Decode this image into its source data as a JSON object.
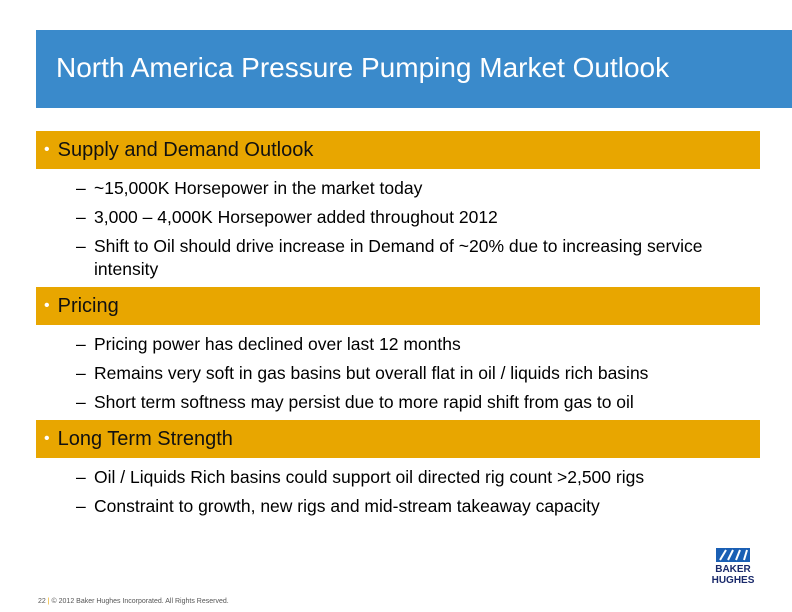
{
  "header": {
    "title": "North America Pressure Pumping Market Outlook"
  },
  "sections": [
    {
      "heading": "Supply and Demand Outlook",
      "bullets": [
        "~15,000K Horsepower in the market today",
        "3,000 – 4,000K Horsepower added throughout 2012",
        "Shift to Oil should drive increase in Demand of ~20% due to increasing service intensity"
      ]
    },
    {
      "heading": "Pricing",
      "bullets": [
        "Pricing power has declined over last 12 months",
        "Remains very soft in gas basins but overall flat in oil / liquids rich basins",
        "Short term softness may persist due to more rapid shift from gas to oil"
      ]
    },
    {
      "heading": "Long Term Strength",
      "bullets": [
        "Oil / Liquids Rich basins could support oil directed rig count >2,500 rigs",
        "Constraint to growth, new rigs and mid-stream takeaway capacity"
      ]
    }
  ],
  "logo": {
    "line1": "BAKER",
    "line2": "HUGHES"
  },
  "footer": {
    "page": "22",
    "copyright": "© 2012 Baker Hughes Incorporated. All Rights Reserved."
  }
}
